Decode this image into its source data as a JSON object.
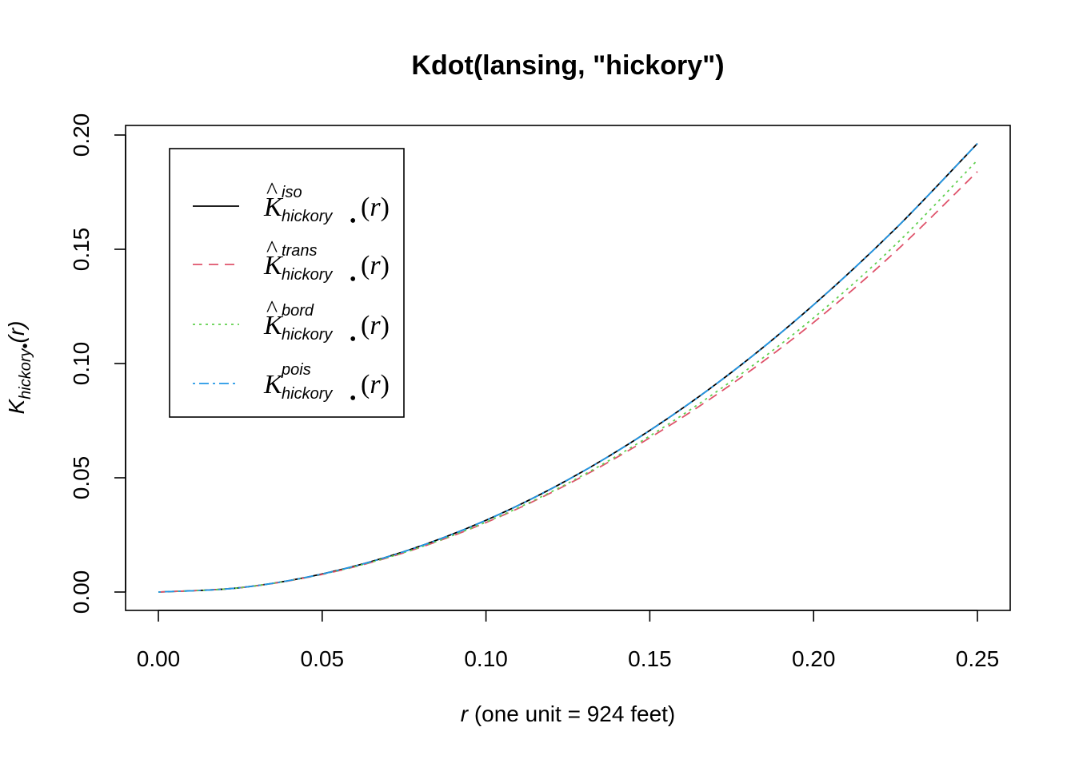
{
  "chart_data": {
    "type": "line",
    "title": "Kdot(lansing, \"hickory\")",
    "xlabel": {
      "var": "r",
      "text": " (one unit = 924 feet)"
    },
    "ylabel": {
      "symbol": "K",
      "sub": "hickory",
      "dot": "•",
      "arg": "(r)"
    },
    "xlim": [
      0,
      0.25
    ],
    "ylim": [
      0,
      0.2
    ],
    "x_ticks": [
      "0.00",
      "0.05",
      "0.10",
      "0.15",
      "0.20",
      "0.25"
    ],
    "y_ticks": [
      "0.00",
      "0.05",
      "0.10",
      "0.15",
      "0.20"
    ],
    "legend_position": "top-left",
    "x": [
      0,
      0.025,
      0.05,
      0.075,
      0.1,
      0.125,
      0.15,
      0.175,
      0.2,
      0.225,
      0.25
    ],
    "series": [
      {
        "name": {
          "symbol": "K",
          "hat": true,
          "sup": "iso",
          "sub": "hickory",
          "dot": "•",
          "arg": "(r)"
        },
        "color": "#000000",
        "dash": "none",
        "values": [
          0,
          0.0019,
          0.0079,
          0.0177,
          0.0314,
          0.0491,
          0.0707,
          0.0962,
          0.1257,
          0.159,
          0.1963
        ]
      },
      {
        "name": {
          "symbol": "K",
          "hat": true,
          "sup": "trans",
          "sub": "hickory",
          "dot": "•",
          "arg": "(r)"
        },
        "color": "#DF536B",
        "dash": "12,8",
        "values": [
          0,
          0.0019,
          0.0077,
          0.0172,
          0.0304,
          0.0472,
          0.0675,
          0.091,
          0.118,
          0.149,
          0.184
        ]
      },
      {
        "name": {
          "symbol": "K",
          "hat": true,
          "sup": "bord",
          "sub": "hickory",
          "dot": "•",
          "arg": "(r)"
        },
        "color": "#61D04F",
        "dash": "3,5",
        "values": [
          0,
          0.0019,
          0.0078,
          0.0173,
          0.0306,
          0.0476,
          0.0683,
          0.0924,
          0.12,
          0.152,
          0.189
        ]
      },
      {
        "name": {
          "symbol": "K",
          "hat": false,
          "sup": "pois",
          "sub": "hickory",
          "dot": "•",
          "arg": "(r)"
        },
        "color": "#2297E6",
        "dash": "3,5,12,5",
        "values": [
          0,
          0.0019,
          0.0079,
          0.0177,
          0.0314,
          0.0491,
          0.0707,
          0.0962,
          0.1257,
          0.159,
          0.1963
        ]
      }
    ]
  }
}
